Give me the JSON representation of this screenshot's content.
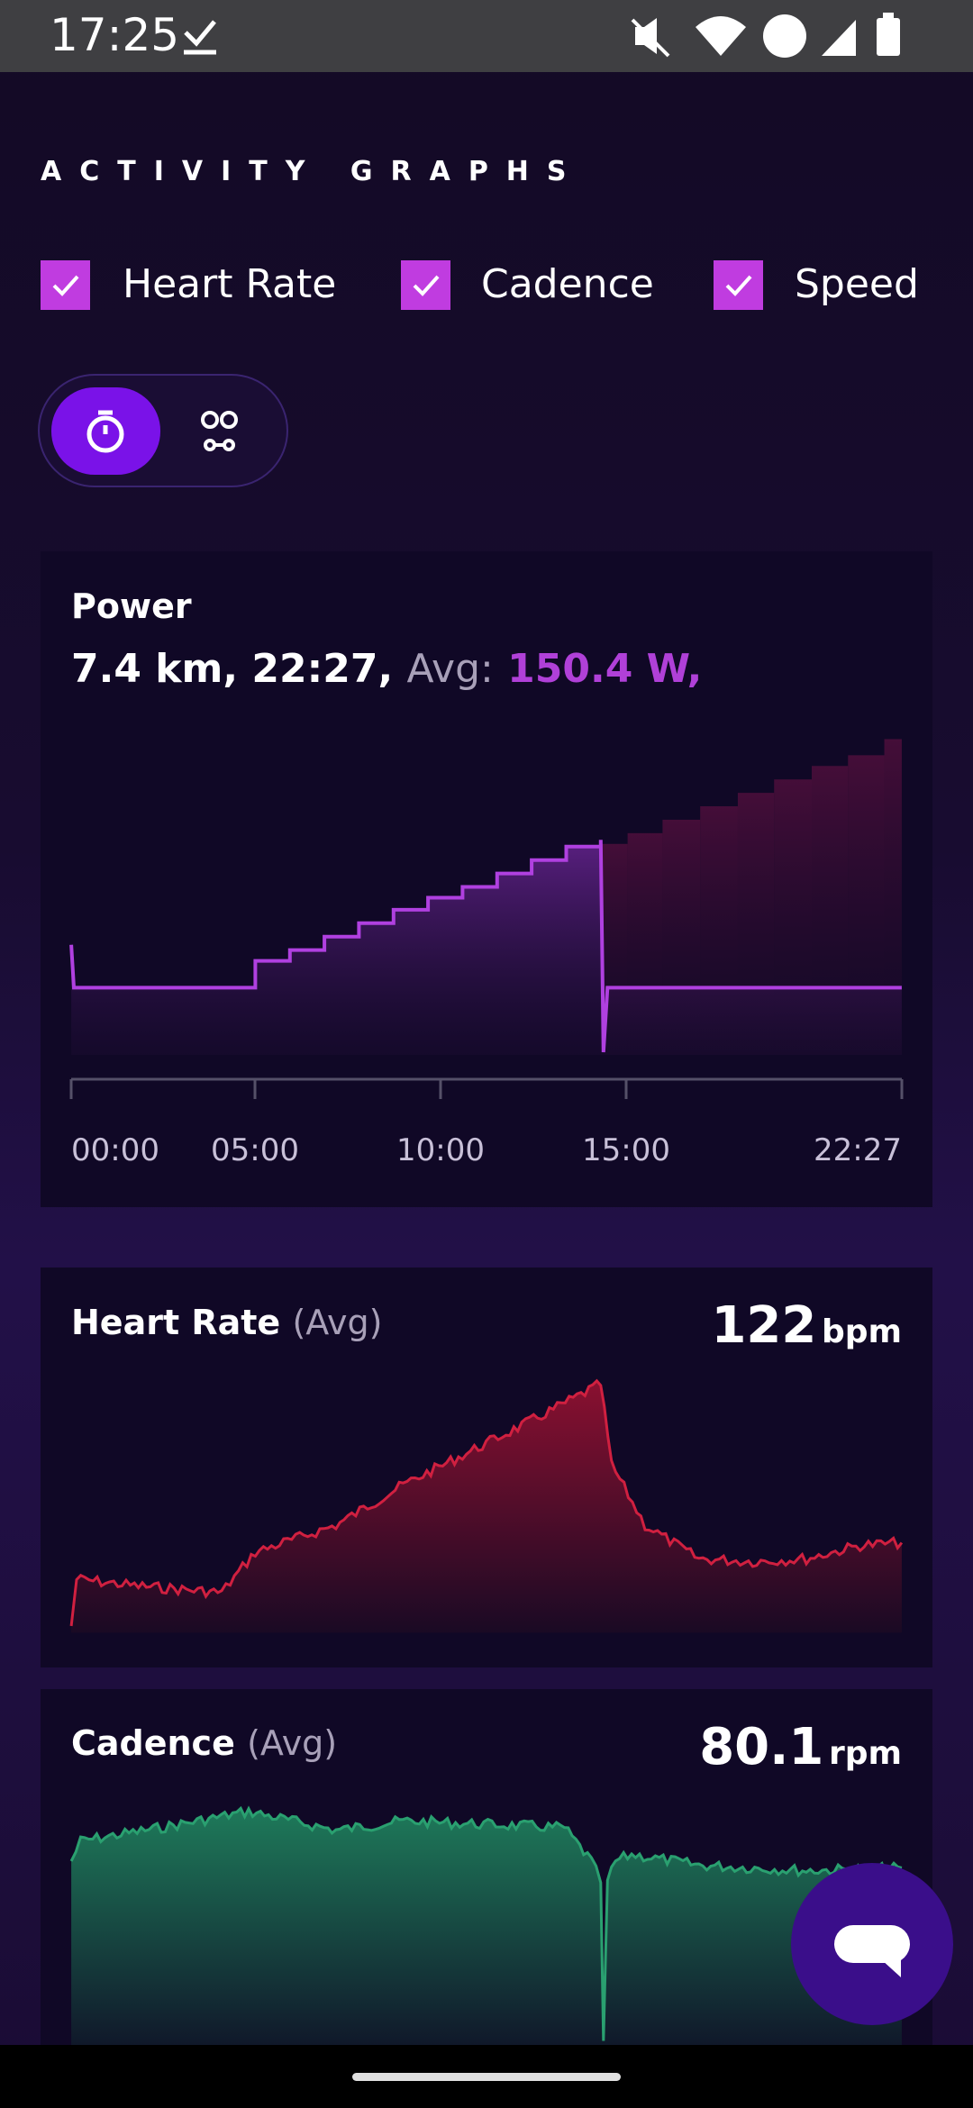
{
  "status_bar": {
    "time": "17:25"
  },
  "title": "ACTIVITY GRAPHS",
  "toggles": [
    {
      "label": "Heart Rate"
    },
    {
      "label": "Cadence"
    },
    {
      "label": "Speed"
    }
  ],
  "power": {
    "title": "Power",
    "distance_time": "7.4 km, 22:27,",
    "avg_label": "Avg:",
    "avg_value": "150.4 W,",
    "x_labels": [
      "00:00",
      "05:00",
      "10:00",
      "15:00",
      "22:27"
    ]
  },
  "heart_rate": {
    "title": "Heart Rate",
    "qualifier": "(Avg)",
    "value": "122",
    "unit": "bpm"
  },
  "cadence": {
    "title": "Cadence",
    "qualifier": "(Avg)",
    "value": "80.1",
    "unit": "rpm"
  }
}
